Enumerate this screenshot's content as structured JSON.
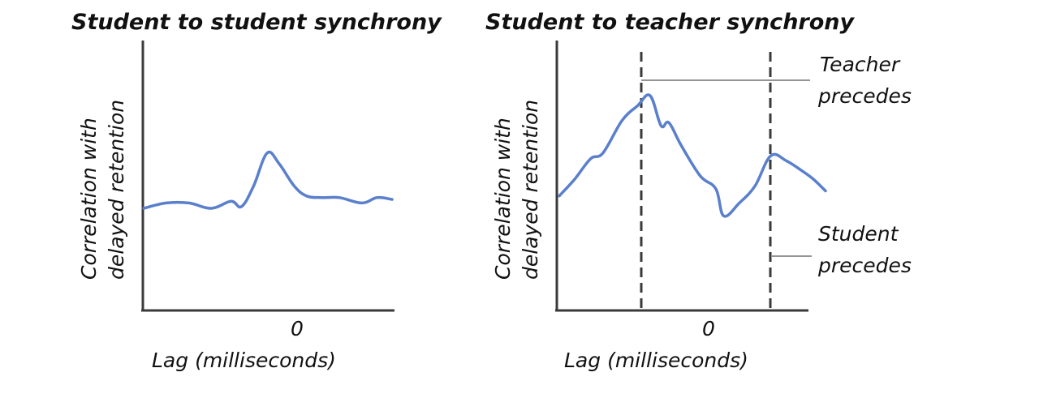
{
  "chart_data": [
    {
      "type": "line",
      "title": "Student to student synchrony",
      "xlabel": "Lag (milliseconds)",
      "ylabel_line1": "Correlation with",
      "ylabel_line2": "delayed retention",
      "x_tick_label": "0",
      "x": [
        -1.0,
        -0.85,
        -0.7,
        -0.55,
        -0.42,
        -0.35,
        -0.27,
        -0.18,
        -0.1,
        0.0,
        0.08,
        0.18,
        0.3,
        0.45,
        0.55,
        0.65
      ],
      "values": [
        0.3,
        0.36,
        0.36,
        0.3,
        0.38,
        0.32,
        0.55,
        0.92,
        0.8,
        0.55,
        0.44,
        0.42,
        0.42,
        0.36,
        0.42,
        0.4
      ]
    },
    {
      "type": "line",
      "title": "Student to teacher synchrony",
      "xlabel": "Lag (milliseconds)",
      "ylabel_line1": "Correlation with",
      "ylabel_line2": "delayed retention",
      "x_tick_label": "0",
      "x": [
        -1.0,
        -0.9,
        -0.8,
        -0.72,
        -0.6,
        -0.5,
        -0.42,
        -0.35,
        -0.3,
        -0.22,
        -0.1,
        0.0,
        0.05,
        0.15,
        0.25,
        0.35,
        0.45,
        0.55,
        0.62,
        0.7
      ],
      "values": [
        0.35,
        0.52,
        0.72,
        0.78,
        1.1,
        1.25,
        1.35,
        1.05,
        1.08,
        0.85,
        0.55,
        0.42,
        0.15,
        0.28,
        0.45,
        0.75,
        0.7,
        0.6,
        0.52,
        0.4
      ],
      "annotations": {
        "teacher_label_line1": "Teacher",
        "teacher_label_line2": "precedes",
        "student_label_line1": "Student",
        "student_label_line2": "precedes"
      }
    }
  ]
}
